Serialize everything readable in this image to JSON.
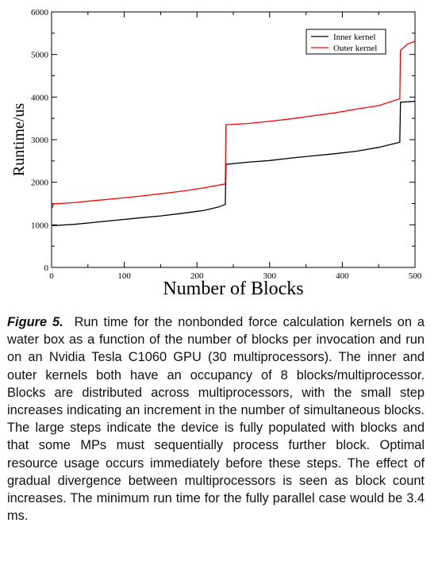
{
  "chart_data": {
    "type": "line",
    "title": "",
    "xlabel": "Number of Blocks",
    "ylabel": "Runtime/us",
    "xlim": [
      0,
      500
    ],
    "ylim": [
      0,
      6000
    ],
    "x_ticks": [
      0,
      100,
      200,
      300,
      400,
      500
    ],
    "y_ticks": [
      0,
      1000,
      2000,
      3000,
      4000,
      5000,
      6000
    ],
    "legend_position": "top-right",
    "grid": false,
    "series": [
      {
        "name": "Inner kernel",
        "color": "#000000",
        "points": [
          [
            1,
            980
          ],
          [
            30,
            1010
          ],
          [
            60,
            1060
          ],
          [
            90,
            1110
          ],
          [
            120,
            1160
          ],
          [
            150,
            1210
          ],
          [
            180,
            1270
          ],
          [
            210,
            1340
          ],
          [
            230,
            1420
          ],
          [
            239,
            1480
          ],
          [
            240,
            2420
          ],
          [
            270,
            2470
          ],
          [
            300,
            2510
          ],
          [
            330,
            2570
          ],
          [
            360,
            2620
          ],
          [
            390,
            2670
          ],
          [
            420,
            2730
          ],
          [
            450,
            2820
          ],
          [
            479,
            2940
          ],
          [
            480,
            3880
          ],
          [
            500,
            3900
          ]
        ]
      },
      {
        "name": "Outer kernel",
        "color": "#ff0000",
        "points": [
          [
            1,
            1400
          ],
          [
            2,
            1490
          ],
          [
            30,
            1520
          ],
          [
            60,
            1570
          ],
          [
            90,
            1620
          ],
          [
            120,
            1670
          ],
          [
            150,
            1730
          ],
          [
            180,
            1790
          ],
          [
            210,
            1870
          ],
          [
            239,
            1960
          ],
          [
            240,
            3350
          ],
          [
            270,
            3380
          ],
          [
            300,
            3430
          ],
          [
            330,
            3490
          ],
          [
            360,
            3560
          ],
          [
            390,
            3630
          ],
          [
            420,
            3720
          ],
          [
            450,
            3800
          ],
          [
            479,
            3960
          ],
          [
            480,
            5100
          ],
          [
            490,
            5250
          ],
          [
            500,
            5310
          ]
        ]
      }
    ]
  },
  "caption": {
    "label": "Figure 5.",
    "text": "Run time for the nonbonded force calculation kernels on a water box as a function of the number of blocks per invocation and run on an Nvidia Tesla C1060 GPU (30 multiprocessors). The inner and outer kernels both have an occupancy of 8 blocks/multiprocessor. Blocks are distributed across multiprocessors, with the small step increases indicating an increment in the number of simultaneous blocks. The large steps indicate the device is fully populated with blocks and that some MPs must sequentially process further block. Optimal resource usage occurs immediately before these steps. The effect of gradual divergence between multiprocessors is seen as block count increases. The minimum run time for the fully parallel case would be 3.4 ms."
  }
}
